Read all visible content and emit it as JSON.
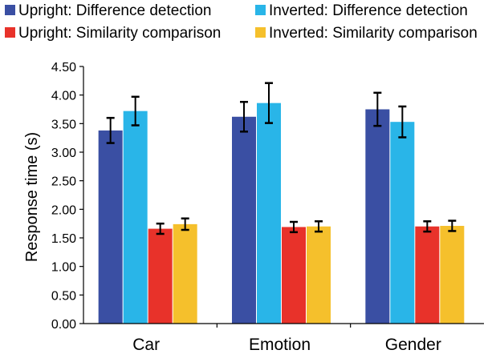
{
  "chart_data": {
    "type": "bar",
    "title": "",
    "xlabel": "",
    "ylabel": "Response time (s)",
    "ylim": [
      0,
      4.5
    ],
    "ytick_labels": [
      "0.00",
      "0.50",
      "1.00",
      "1.50",
      "2.00",
      "2.50",
      "3.00",
      "3.50",
      "4.00",
      "4.50"
    ],
    "categories": [
      "Car",
      "Emotion",
      "Gender"
    ],
    "series": [
      {
        "name": "Upright: Difference detection",
        "color": "#3a4fa3",
        "values": [
          3.38,
          3.62,
          3.75
        ],
        "errors": [
          0.22,
          0.26,
          0.29
        ]
      },
      {
        "name": "Inverted: Difference detection",
        "color": "#29b5e8",
        "values": [
          3.72,
          3.86,
          3.53
        ],
        "errors": [
          0.25,
          0.35,
          0.27
        ]
      },
      {
        "name": "Upright: Similarity comparison",
        "color": "#e8322a",
        "values": [
          1.66,
          1.69,
          1.7
        ],
        "errors": [
          0.09,
          0.09,
          0.09
        ]
      },
      {
        "name": "Inverted: Similarity comparison",
        "color": "#f5c02c",
        "values": [
          1.74,
          1.7,
          1.71
        ],
        "errors": [
          0.1,
          0.09,
          0.09
        ]
      }
    ],
    "legend_position": "top",
    "grid": false
  }
}
